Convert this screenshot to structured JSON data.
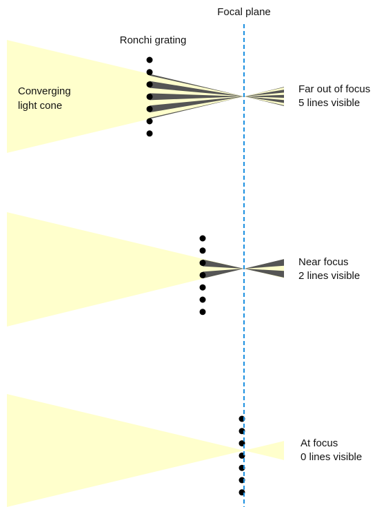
{
  "focal_plane_label": "Focal plane",
  "grating_label": "Ronchi grating",
  "cone_label": [
    "Converging",
    "light cone"
  ],
  "panels": [
    {
      "lines": [
        "Far out of focus",
        "5 lines visible"
      ]
    },
    {
      "lines": [
        "Near focus",
        "2 lines visible"
      ]
    },
    {
      "lines": [
        "At focus",
        "0 lines visible"
      ]
    }
  ]
}
